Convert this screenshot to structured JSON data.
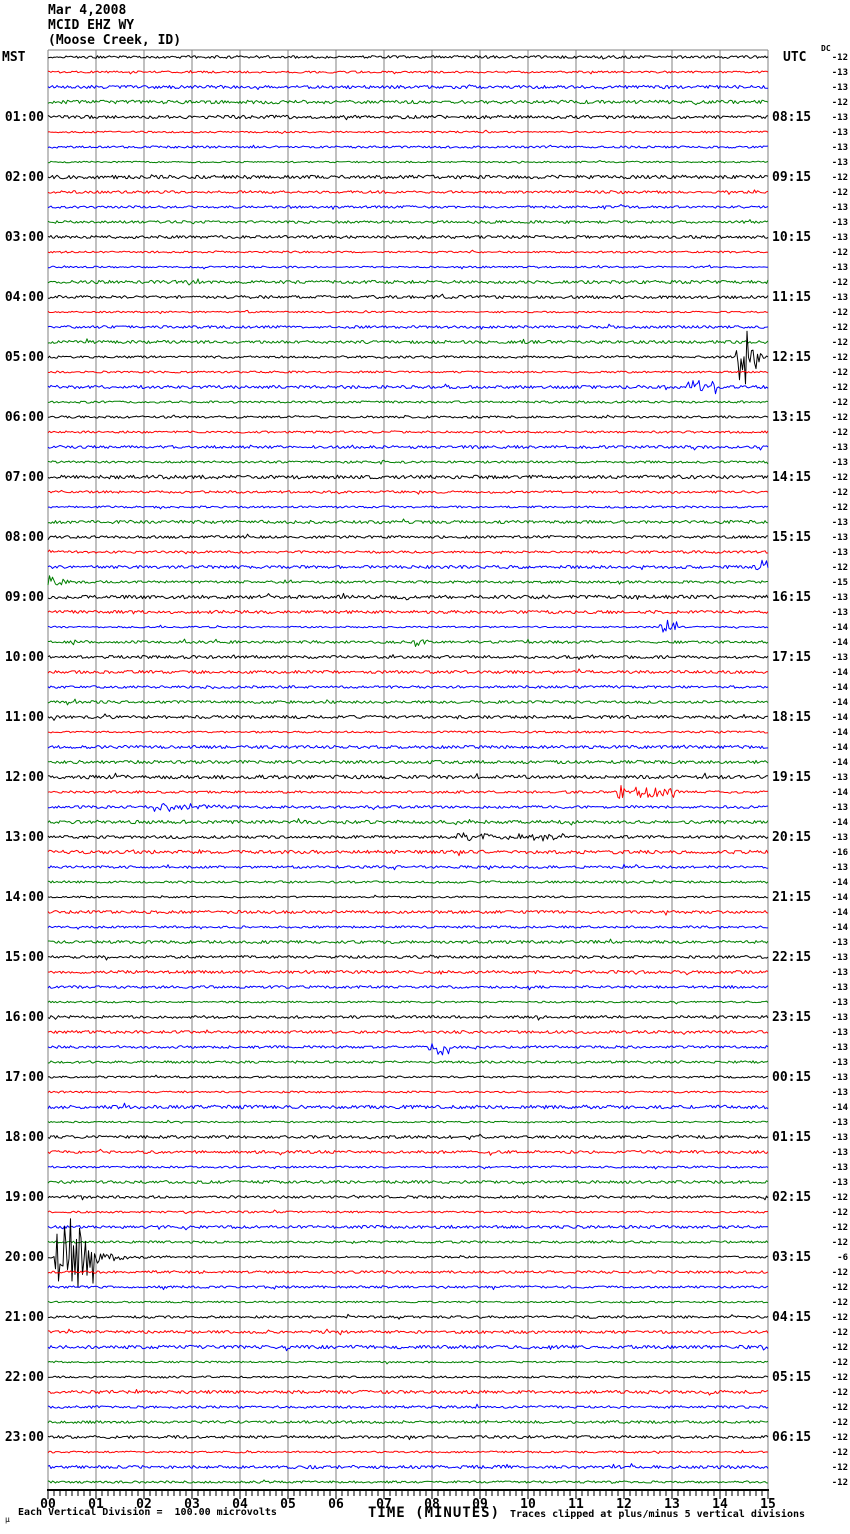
{
  "header": {
    "date": "Mar 4,2008",
    "station": "MCID EHZ WY",
    "location": "(Moose Creek, ID)"
  },
  "axes": {
    "left_label": "MST",
    "right_label": "UTC",
    "dc_label": "DC",
    "x_title": "TIME (MINUTES)"
  },
  "footer": {
    "left": "Each Vertical Division =  100.00 microvolts",
    "right": "Traces clipped at plus/minus 5 vertical divisions",
    "corner_mark": "µ"
  },
  "chart_data": {
    "type": "line",
    "subtype": "helicorder-seismogram",
    "title": "MCID EHZ WY (Moose Creek, ID) Mar 4,2008",
    "xlabel": "TIME (MINUTES)",
    "x_range_minutes": [
      0,
      15
    ],
    "minutes_per_line": 15,
    "lines_per_hour": 4,
    "num_traces": 96,
    "microvolts_per_division": 100.0,
    "clip_divisions": 5,
    "grid": true,
    "trace_colors_cycle": [
      "#000000",
      "#ff0000",
      "#0000ff",
      "#008000"
    ],
    "x_tick_labels": [
      "00",
      "01",
      "02",
      "03",
      "04",
      "05",
      "06",
      "07",
      "08",
      "09",
      "10",
      "11",
      "12",
      "13",
      "14",
      "15"
    ],
    "left_hour_labels": [
      "01:00",
      "02:00",
      "03:00",
      "04:00",
      "05:00",
      "06:00",
      "07:00",
      "08:00",
      "09:00",
      "10:00",
      "11:00",
      "12:00",
      "13:00",
      "14:00",
      "15:00",
      "16:00",
      "17:00",
      "18:00",
      "19:00",
      "20:00",
      "21:00",
      "22:00",
      "23:00"
    ],
    "right_utc_labels": [
      "08:15",
      "09:15",
      "10:15",
      "11:15",
      "12:15",
      "13:15",
      "14:15",
      "15:15",
      "16:15",
      "17:15",
      "18:15",
      "19:15",
      "20:15",
      "21:15",
      "22:15",
      "23:15",
      "00:15",
      "01:15",
      "02:15",
      "03:15",
      "04:15",
      "05:15",
      "06:15"
    ],
    "dc_offsets": [
      -12,
      -13,
      -13,
      -12,
      -13,
      -13,
      -13,
      -13,
      -12,
      -12,
      -13,
      -13,
      -13,
      -12,
      -13,
      -12,
      -13,
      -12,
      -12,
      -12,
      -12,
      -12,
      -12,
      -12,
      -12,
      -12,
      -13,
      -13,
      -12,
      -12,
      -12,
      -13,
      -13,
      -13,
      -12,
      -15,
      -13,
      -13,
      -14,
      -14,
      -13,
      -14,
      -14,
      -14,
      -14,
      -14,
      -14,
      -14,
      -13,
      -14,
      -13,
      -14,
      -13,
      -16,
      -13,
      -14,
      -14,
      -14,
      -14,
      -13,
      -13,
      -13,
      -13,
      -13,
      -13,
      -13,
      -13,
      -13,
      -13,
      -13,
      -14,
      -13,
      -13,
      -13,
      -13,
      -13,
      -12,
      -12,
      -12,
      -12,
      -6,
      -12,
      -12,
      -12,
      -12,
      -12,
      -12,
      -12,
      -12,
      -12,
      -12,
      -12,
      -12,
      -12,
      -12,
      -12
    ],
    "events": [
      {
        "trace": 16,
        "t0": 3.0,
        "t1": 3.15,
        "amp": 4,
        "mode": "burst",
        "desc": "minor blip 03:45 MST"
      },
      {
        "trace": 21,
        "t0": 14.33,
        "t1": 14.78,
        "amp": 45,
        "mode": "burst",
        "desc": "large clipped event 05:00 MST / 12:15 UTC"
      },
      {
        "trace": 21,
        "t0": 14.78,
        "t1": 15.0,
        "amp": 10,
        "mode": "decay",
        "desc": "coda of large event"
      },
      {
        "trace": 23,
        "t0": 13.3,
        "t1": 13.95,
        "amp": 8,
        "mode": "burst",
        "desc": "burst 05:30 MST blue line"
      },
      {
        "trace": 28,
        "t0": 6.9,
        "t1": 7.05,
        "amp": 4,
        "mode": "burst",
        "desc": "minor blip 06:45 MST"
      },
      {
        "trace": 34,
        "t0": 0.0,
        "t1": 0.1,
        "amp": 8,
        "mode": "decay",
        "desc": "left-edge tick 08:15 MST"
      },
      {
        "trace": 35,
        "t0": 14.75,
        "t1": 15.0,
        "amp": 13,
        "mode": "burst",
        "desc": "right-edge burst 08:30 MST"
      },
      {
        "trace": 36,
        "t0": 0.0,
        "t1": 0.7,
        "amp": 14,
        "mode": "decay",
        "desc": "event onset 08:45 MST (DC -15)"
      },
      {
        "trace": 39,
        "t0": 12.7,
        "t1": 13.1,
        "amp": 7,
        "mode": "burst",
        "desc": "burst 09:30 MST"
      },
      {
        "trace": 40,
        "t0": 0.45,
        "t1": 1.0,
        "amp": 6,
        "mode": "decay",
        "desc": "burst 09:45 MST"
      },
      {
        "trace": 40,
        "t0": 7.6,
        "t1": 7.95,
        "amp": 5,
        "mode": "burst",
        "desc": "small burst 09:45 MST mid-line"
      },
      {
        "trace": 50,
        "t0": 11.85,
        "t1": 12.0,
        "amp": 13,
        "mode": "burst",
        "desc": "spike 12:15 MST red line"
      },
      {
        "trace": 50,
        "t0": 12.2,
        "t1": 13.15,
        "amp": 7,
        "mode": "burst",
        "desc": "burst 12:15 MST red line"
      },
      {
        "trace": 51,
        "t0": 2.2,
        "t1": 5.2,
        "amp": 7,
        "mode": "decay",
        "desc": "long burst 12:30 MST blue line"
      },
      {
        "trace": 53,
        "t0": 8.5,
        "t1": 10.8,
        "amp": 4,
        "mode": "burst",
        "desc": "elevated noise 13:00 MST"
      },
      {
        "trace": 67,
        "t0": 7.9,
        "t1": 8.35,
        "amp": 9,
        "mode": "burst",
        "desc": "burst 16:30 MST blue line"
      },
      {
        "trace": 81,
        "t0": 0.15,
        "t1": 0.95,
        "amp": 45,
        "mode": "burst",
        "desc": "large clipped event 20:00 MST / 03:15 UTC (DC -6)"
      },
      {
        "trace": 81,
        "t0": 0.95,
        "t1": 2.8,
        "amp": 8,
        "mode": "decay",
        "desc": "coda of 20:00 event"
      }
    ]
  }
}
